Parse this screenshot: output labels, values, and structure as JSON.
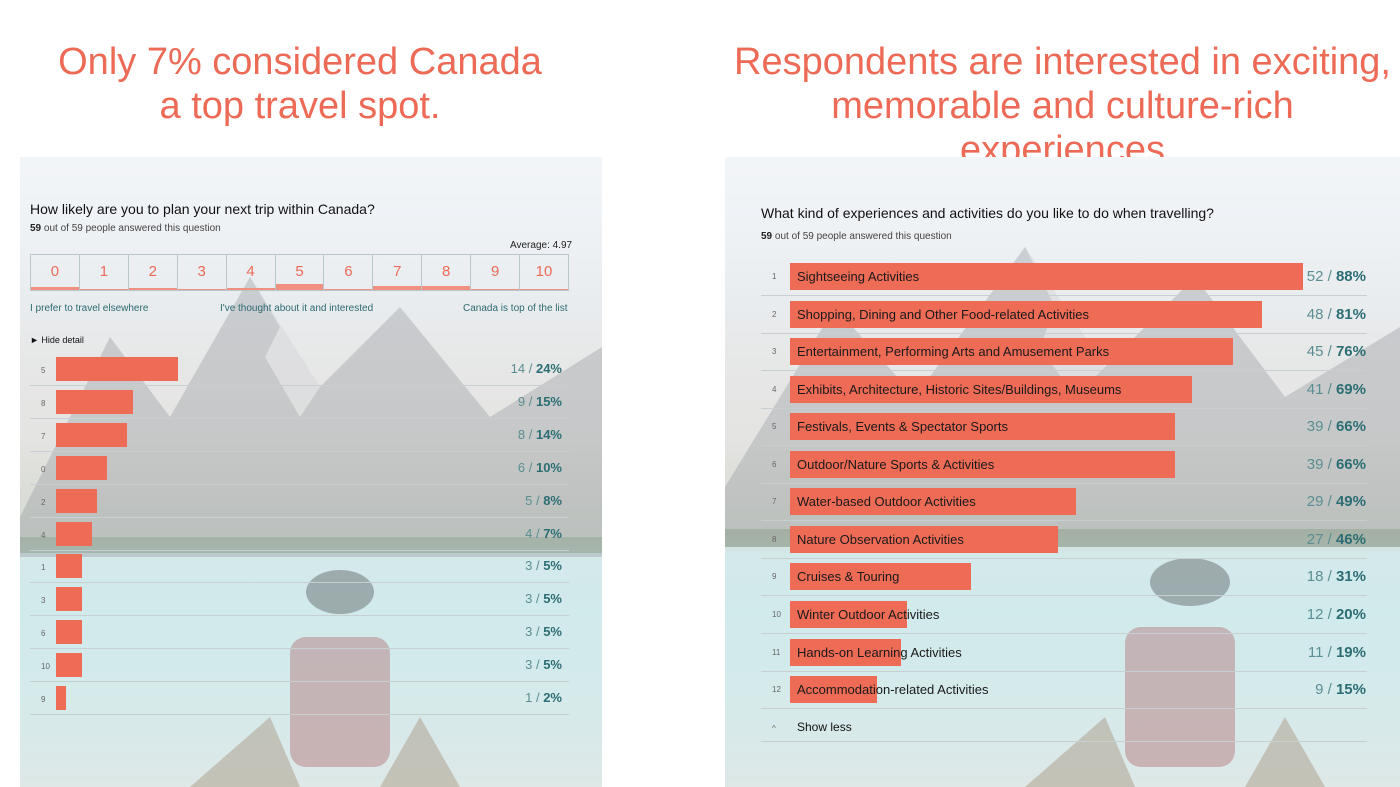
{
  "left": {
    "headline_1": "Only 7% considered Canada",
    "headline_2": "a top travel spot.",
    "question": "How likely are you to plan your next trip within Canada?",
    "answered_count": "59",
    "answered_text": "out of 59 people answered this question",
    "average_label": "Average: 4.97",
    "anchor_low": "I prefer to travel elsewhere",
    "anchor_mid": "I've thought about it and interested",
    "anchor_high": "Canada is top of the list",
    "toggle_label": "► Hide detail"
  },
  "right": {
    "headline_1": "Respondents are interested in exciting,",
    "headline_2": "memorable and culture-rich experiences",
    "question": "What kind of experiences and activities do you like to do when travelling?",
    "answered_count": "59",
    "answered_text": "out of 59 people answered this question",
    "show_less_rank": "^",
    "show_less_label": "Show less"
  },
  "colors": {
    "accent": "#ec6a56",
    "bar": "#ee6b56",
    "value_text": "#2c6e73"
  },
  "chart_data": [
    {
      "type": "bar",
      "orientation": "horizontal",
      "scale": {
        "labels": [
          "0",
          "1",
          "2",
          "3",
          "4",
          "5",
          "6",
          "7",
          "8",
          "9",
          "10"
        ],
        "percent": [
          10,
          5,
          8,
          5,
          7,
          24,
          5,
          14,
          15,
          2,
          5
        ]
      },
      "categories": [
        "5",
        "8",
        "7",
        "0",
        "2",
        "4",
        "1",
        "3",
        "6",
        "10",
        "9"
      ],
      "counts": [
        14,
        9,
        8,
        6,
        5,
        4,
        3,
        3,
        3,
        3,
        1
      ],
      "values": [
        24,
        15,
        14,
        10,
        8,
        7,
        5,
        5,
        5,
        5,
        2
      ],
      "labels": [
        "14 / 24%",
        "9 / 15%",
        "8 / 14%",
        "6 / 10%",
        "5 / 8%",
        "4 / 7%",
        "3 / 5%",
        "3 / 5%",
        "3 / 5%",
        "3 / 5%",
        "1 / 2%"
      ],
      "xlim": [
        0,
        100
      ]
    },
    {
      "type": "bar",
      "orientation": "horizontal",
      "ranks": [
        "1",
        "2",
        "3",
        "4",
        "5",
        "6",
        "7",
        "8",
        "9",
        "10",
        "11",
        "12"
      ],
      "categories": [
        "Sightseeing Activities",
        "Shopping, Dining and Other Food-related Activities",
        "Entertainment, Performing Arts and Amusement Parks",
        "Exhibits, Architecture, Historic Sites/Buildings, Museums",
        "Festivals, Events & Spectator Sports",
        "Outdoor/Nature Sports & Activities",
        "Water-based Outdoor Activities",
        "Nature Observation Activities",
        "Cruises & Touring",
        "Winter Outdoor Activities",
        "Hands-on Learning Activities",
        "Accommodation-related Activities"
      ],
      "counts": [
        52,
        48,
        45,
        41,
        39,
        39,
        29,
        27,
        18,
        12,
        11,
        9
      ],
      "values": [
        88,
        81,
        76,
        69,
        66,
        66,
        49,
        46,
        31,
        20,
        19,
        15
      ],
      "labels": [
        "52 / 88%",
        "48 / 81%",
        "45 / 76%",
        "41 / 69%",
        "39 / 66%",
        "39 / 66%",
        "29 / 49%",
        "27 / 46%",
        "18 / 31%",
        "12 / 20%",
        "11 / 19%",
        "9 / 15%"
      ],
      "xlim": [
        0,
        100
      ]
    }
  ]
}
